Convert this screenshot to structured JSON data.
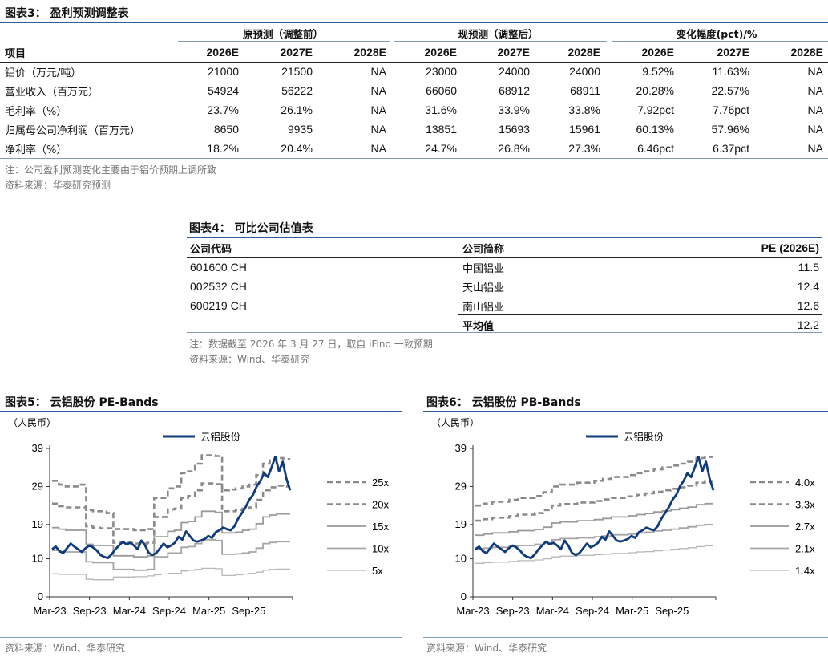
{
  "table3": {
    "title": "图表3： 盈利预测调整表",
    "groups": [
      "原预测（调整前）",
      "现预测（调整后）",
      "变化幅度(pct)/%"
    ],
    "item_label": "项目",
    "years": [
      "2026E",
      "2027E",
      "2028E",
      "2026E",
      "2027E",
      "2028E",
      "2026E",
      "2027E",
      "2028E"
    ],
    "rows": [
      {
        "label": "铝价（万元/吨）",
        "values": [
          "21000",
          "21500",
          "NA",
          "23000",
          "24000",
          "24000",
          "9.52%",
          "11.63%",
          "NA"
        ]
      },
      {
        "label": "营业收入（百万元）",
        "values": [
          "54924",
          "56222",
          "NA",
          "66060",
          "68912",
          "68911",
          "20.28%",
          "22.57%",
          "NA"
        ]
      },
      {
        "label": "毛利率（%）",
        "values": [
          "23.7%",
          "26.1%",
          "NA",
          "31.6%",
          "33.9%",
          "33.8%",
          "7.92pct",
          "7.76pct",
          "NA"
        ]
      },
      {
        "label": "归属母公司净利润（百万元）",
        "values": [
          "8650",
          "9935",
          "NA",
          "13851",
          "15693",
          "15961",
          "60.13%",
          "57.96%",
          "NA"
        ]
      },
      {
        "label": "净利率（%）",
        "values": [
          "18.2%",
          "20.4%",
          "NA",
          "24.7%",
          "26.8%",
          "27.3%",
          "6.46pct",
          "6.37pct",
          "NA"
        ]
      }
    ],
    "note": "注：公司盈利预测变化主要由于铝价预期上调所致",
    "source": "资料来源：华泰研究预测"
  },
  "table4": {
    "title": "图表4： 可比公司估值表",
    "headers": [
      "公司代码",
      "公司简称",
      "PE (2026E)"
    ],
    "rows": [
      {
        "code": "601600 CH",
        "name": "中国铝业",
        "pe": "11.5"
      },
      {
        "code": "002532 CH",
        "name": "天山铝业",
        "pe": "12.4"
      },
      {
        "code": "600219 CH",
        "name": "南山铝业",
        "pe": "12.6"
      }
    ],
    "avg_label": "平均值",
    "avg_value": "12.2",
    "note": "注：数据截至 2026 年 3 月 27 日，取自 iFind 一致预期",
    "source": "资料来源：Wind、华泰研究"
  },
  "chart5": {
    "title": "图表5： 云铝股份 PE-Bands",
    "unit": "（人民币）",
    "source": "资料来源：Wind、华泰研究",
    "chart_data": {
      "type": "line",
      "title": "图表5： 云铝股份 PE-Bands",
      "ylabel": "（人民币）",
      "ylim": [
        0,
        39
      ],
      "yticks": [
        0,
        10,
        19,
        29,
        39
      ],
      "xticks": [
        "Mar-23",
        "Sep-23",
        "Mar-24",
        "Sep-24",
        "Mar-25",
        "Sep-25"
      ],
      "price_series": {
        "name": "云铝股份",
        "color": "#0f3b7d",
        "values": [
          12.5,
          13.2,
          12.0,
          11.5,
          12.8,
          14.0,
          13.2,
          12.5,
          11.8,
          12.8,
          13.5,
          13.0,
          12.2,
          11.0,
          10.5,
          10.2,
          11.2,
          12.5,
          13.5,
          14.5,
          13.8,
          14.2,
          13.5,
          12.5,
          14.8,
          13.5,
          11.5,
          11.0,
          11.5,
          12.8,
          14.0,
          13.0,
          13.5,
          14.2,
          15.8,
          15.0,
          17.2,
          16.0,
          14.8,
          14.5,
          14.8,
          15.2,
          16.0,
          15.5,
          17.0,
          17.5,
          18.2,
          17.8,
          17.5,
          18.5,
          20.5,
          22.0,
          23.5,
          25.5,
          26.8,
          29.0,
          30.5,
          32.5,
          31.5,
          34.0,
          36.8,
          33.0,
          35.5,
          31.0,
          28.0
        ]
      },
      "bands": [
        {
          "name": "25x",
          "color": "#8a8a8a",
          "dash": true,
          "values": [
            30.5,
            29.5,
            29.0,
            29.0,
            29.5,
            22.8,
            22.5,
            22.5,
            22.0,
            17.8,
            17.8,
            17.8,
            17.5,
            17.5,
            17.8,
            26.0,
            26.0,
            28.5,
            29.0,
            32.5,
            33.0,
            35.0,
            37.2,
            37.2,
            37.0,
            28.0,
            28.2,
            28.5,
            29.0,
            29.5,
            32.0,
            35.0,
            36.0,
            36.5,
            36.2,
            36.2
          ]
        },
        {
          "name": "20x",
          "color": "#8a8a8a",
          "dash": true,
          "values": [
            24.5,
            23.8,
            23.5,
            23.5,
            23.5,
            18.5,
            18.2,
            18.0,
            18.0,
            14.2,
            14.2,
            14.2,
            14.0,
            14.0,
            14.2,
            21.0,
            21.0,
            23.0,
            23.2,
            26.0,
            26.5,
            28.0,
            29.8,
            29.8,
            29.6,
            22.5,
            22.5,
            22.8,
            23.2,
            23.5,
            25.5,
            28.0,
            28.8,
            29.2,
            29.0,
            29.0
          ]
        },
        {
          "name": "15x",
          "color": "#9a9a9a",
          "dash": false,
          "values": [
            18.2,
            17.8,
            17.5,
            17.5,
            17.5,
            13.8,
            13.5,
            13.5,
            13.5,
            10.8,
            10.8,
            10.8,
            10.5,
            10.5,
            10.8,
            15.8,
            15.8,
            17.2,
            17.5,
            19.5,
            19.8,
            21.0,
            22.5,
            22.5,
            22.2,
            16.8,
            16.8,
            17.0,
            17.5,
            17.8,
            19.2,
            21.0,
            21.5,
            21.8,
            21.8,
            21.8
          ]
        },
        {
          "name": "10x",
          "color": "#a5a5a5",
          "dash": false,
          "values": [
            12.2,
            11.8,
            11.8,
            11.8,
            11.8,
            9.2,
            9.0,
            9.0,
            9.0,
            7.2,
            7.2,
            7.2,
            7.0,
            7.0,
            7.2,
            10.5,
            10.5,
            11.5,
            11.5,
            13.0,
            13.2,
            14.0,
            15.0,
            15.0,
            14.8,
            11.2,
            11.2,
            11.3,
            11.5,
            11.8,
            12.8,
            14.0,
            14.3,
            14.5,
            14.5,
            14.5
          ]
        },
        {
          "name": "5x",
          "color": "#b8b8b8",
          "dash": false,
          "values": [
            6.1,
            5.9,
            5.9,
            5.9,
            5.9,
            4.6,
            4.5,
            4.5,
            4.5,
            5.2,
            5.2,
            5.2,
            5.3,
            5.3,
            5.5,
            5.8,
            6.0,
            6.2,
            6.2,
            6.8,
            7.0,
            7.2,
            7.5,
            7.5,
            7.4,
            5.6,
            5.6,
            5.8,
            6.0,
            6.2,
            6.5,
            7.0,
            7.2,
            7.3,
            7.3,
            7.3
          ]
        }
      ]
    }
  },
  "chart6": {
    "title": "图表6： 云铝股份 PB-Bands",
    "unit": "（人民币）",
    "source": "资料来源：Wind、华泰研究",
    "chart_data": {
      "type": "line",
      "title": "图表6： 云铝股份 PB-Bands",
      "ylabel": "（人民币）",
      "ylim": [
        0,
        39
      ],
      "yticks": [
        0,
        10,
        19,
        29,
        39
      ],
      "xticks": [
        "Mar-23",
        "Sep-23",
        "Mar-24",
        "Sep-24",
        "Mar-25",
        "Sep-25"
      ],
      "price_series": {
        "name": "云铝股份",
        "color": "#0f3b7d",
        "values": [
          12.5,
          13.2,
          12.0,
          11.5,
          12.8,
          14.0,
          13.2,
          12.5,
          11.8,
          12.8,
          13.5,
          13.0,
          12.2,
          11.0,
          10.5,
          10.2,
          11.2,
          12.5,
          13.5,
          14.5,
          13.8,
          14.2,
          13.5,
          12.5,
          14.8,
          13.5,
          11.5,
          11.0,
          11.5,
          12.8,
          14.0,
          13.0,
          13.5,
          14.2,
          15.8,
          15.0,
          17.2,
          16.0,
          14.8,
          14.5,
          14.8,
          15.2,
          16.0,
          15.5,
          17.0,
          17.5,
          18.2,
          17.8,
          17.5,
          18.5,
          20.5,
          22.0,
          23.5,
          25.5,
          26.8,
          29.0,
          30.5,
          32.5,
          31.5,
          34.0,
          36.8,
          33.0,
          35.5,
          31.0,
          28.0
        ]
      },
      "bands": [
        {
          "name": "4.0x",
          "color": "#8a8a8a",
          "dash": true,
          "values": [
            24.0,
            24.5,
            25.0,
            25.0,
            25.5,
            26.0,
            26.0,
            26.5,
            27.5,
            29.0,
            29.5,
            29.5,
            30.0,
            30.0,
            30.5,
            31.0,
            31.5,
            31.5,
            32.0,
            32.5,
            33.0,
            33.5,
            34.0,
            34.5,
            35.0,
            35.5,
            36.5,
            36.8,
            36.8
          ]
        },
        {
          "name": "3.3x",
          "color": "#8a8a8a",
          "dash": true,
          "values": [
            20.0,
            20.4,
            20.8,
            20.8,
            21.2,
            21.6,
            21.6,
            22.0,
            22.8,
            24.0,
            24.4,
            24.4,
            24.8,
            24.8,
            25.2,
            25.6,
            26.0,
            26.0,
            26.4,
            26.8,
            27.2,
            27.6,
            28.0,
            28.4,
            28.8,
            29.2,
            30.0,
            30.4,
            30.4
          ]
        },
        {
          "name": "2.7x",
          "color": "#9a9a9a",
          "dash": false,
          "values": [
            16.2,
            16.5,
            16.8,
            16.8,
            17.1,
            17.4,
            17.4,
            17.7,
            18.3,
            19.4,
            19.7,
            19.7,
            20.0,
            20.0,
            20.3,
            20.6,
            21.0,
            21.0,
            21.3,
            21.6,
            21.9,
            22.3,
            22.6,
            22.9,
            23.3,
            23.6,
            24.2,
            24.5,
            24.5
          ]
        },
        {
          "name": "2.1x",
          "color": "#a5a5a5",
          "dash": false,
          "values": [
            12.6,
            12.8,
            13.0,
            13.0,
            13.3,
            13.5,
            13.5,
            13.8,
            14.2,
            15.0,
            15.3,
            15.3,
            15.5,
            15.5,
            15.8,
            16.0,
            16.3,
            16.3,
            16.5,
            16.8,
            17.0,
            17.3,
            17.5,
            17.8,
            18.1,
            18.4,
            18.8,
            19.0,
            19.0
          ]
        },
        {
          "name": "1.4x",
          "color": "#b8b8b8",
          "dash": false,
          "values": [
            8.8,
            9.0,
            9.1,
            9.1,
            9.3,
            9.5,
            9.5,
            9.7,
            10.0,
            10.5,
            10.7,
            10.7,
            10.9,
            10.9,
            11.1,
            11.2,
            11.4,
            11.4,
            11.6,
            11.8,
            11.9,
            12.1,
            12.3,
            12.5,
            12.7,
            12.9,
            13.2,
            13.4,
            13.4
          ]
        }
      ]
    }
  }
}
